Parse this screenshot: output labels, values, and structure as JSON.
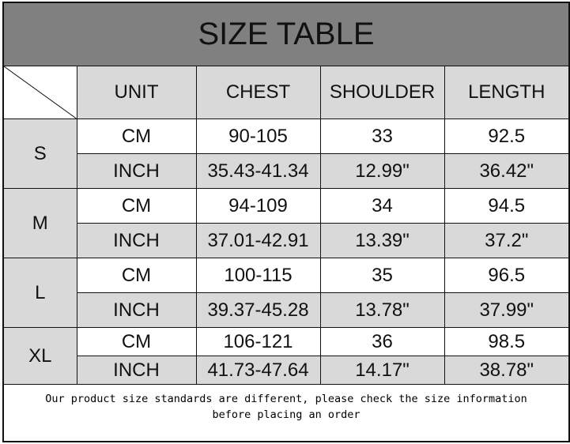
{
  "title": "SIZE TABLE",
  "headers": [
    "UNIT",
    "CHEST",
    "SHOULDER",
    "LENGTH"
  ],
  "sizes": [
    {
      "size": "S",
      "rows": [
        [
          "CM",
          "90-105",
          "33",
          "92.5"
        ],
        [
          "INCH",
          "35.43-41.34",
          "12.99\"",
          "36.42\""
        ]
      ]
    },
    {
      "size": "M",
      "rows": [
        [
          "CM",
          "94-109",
          "34",
          "94.5"
        ],
        [
          "INCH",
          "37.01-42.91",
          "13.39\"",
          "37.2\""
        ]
      ]
    },
    {
      "size": "L",
      "rows": [
        [
          "CM",
          "100-115",
          "35",
          "96.5"
        ],
        [
          "INCH",
          "39.37-45.28",
          "13.78\"",
          "37.99\""
        ]
      ]
    },
    {
      "size": "XL",
      "rows": [
        [
          "CM",
          "106-121",
          "36",
          "98.5"
        ],
        [
          "INCH",
          "41.73-47.64",
          "14.17\"",
          "38.78\""
        ]
      ]
    }
  ],
  "note_line1": "Our product size standards are different, please check the size information",
  "note_line2": "before placing an order",
  "colors": {
    "title_bg": "#808080",
    "cell_gray": "#d9d9d9"
  }
}
